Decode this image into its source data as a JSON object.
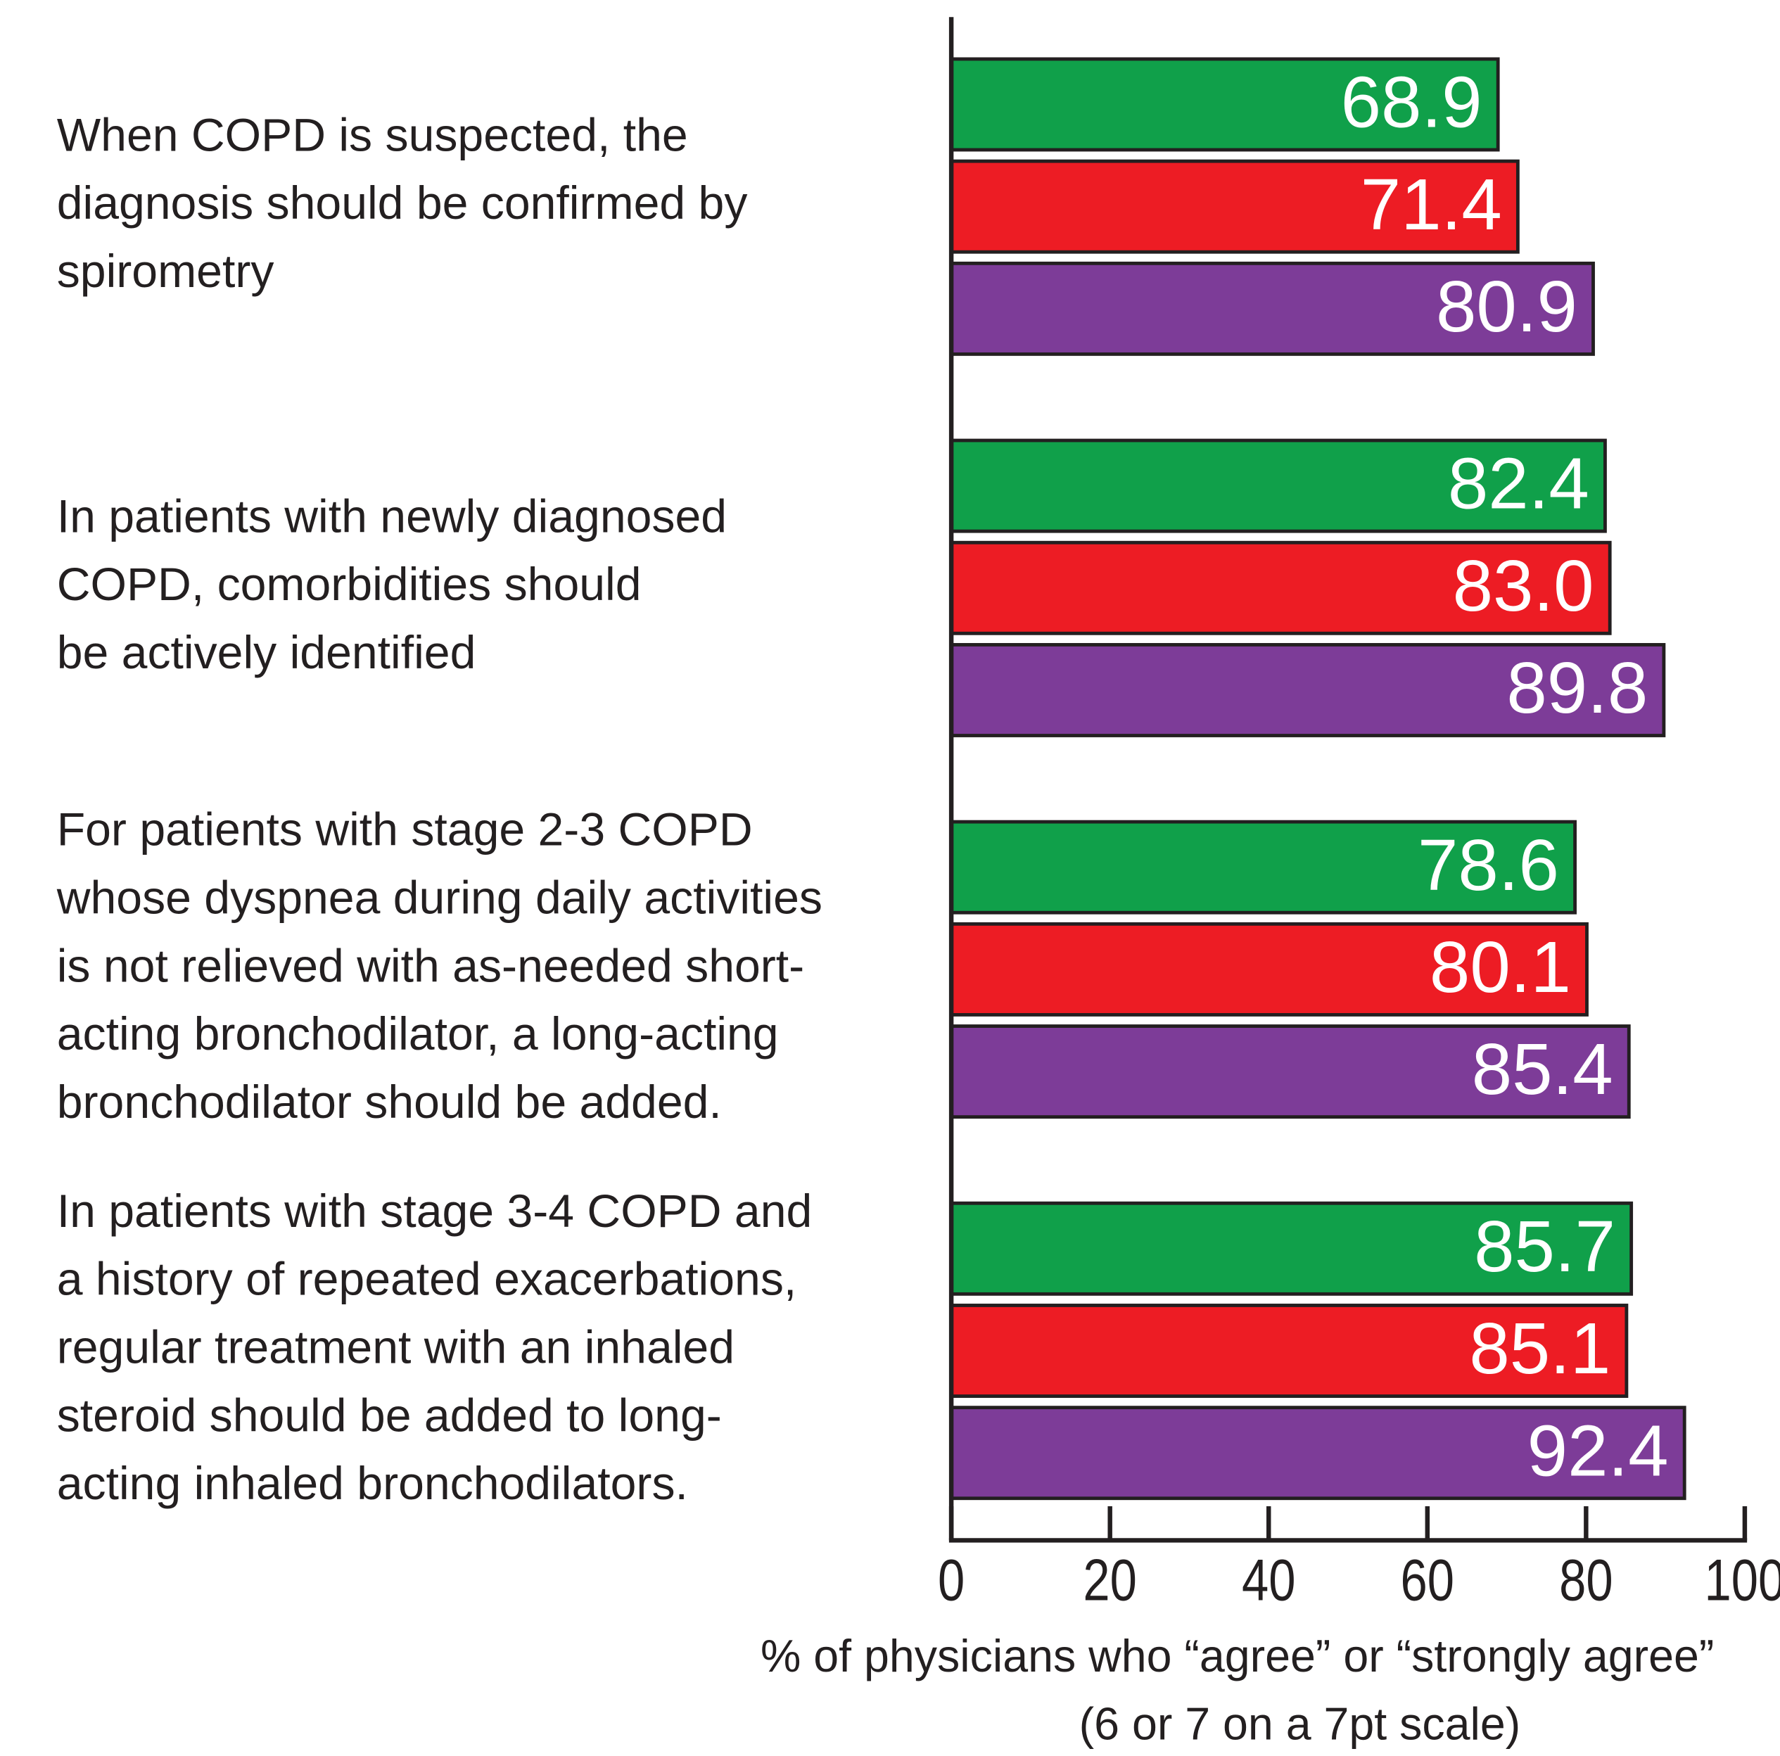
{
  "chart_data": {
    "type": "barh",
    "categories": [
      [
        "When COPD is suspected, the",
        "diagnosis should be confirmed by",
        "spirometry"
      ],
      [
        "In patients with newly diagnosed",
        "COPD, comorbidities should",
        "be actively identified"
      ],
      [
        "For patients with stage 2-3 COPD",
        "whose dyspnea during daily activities",
        "is not relieved with as-needed short-",
        "acting bronchodilator, a long-acting",
        "bronchodilator should be added."
      ],
      [
        "In patients with stage 3-4 COPD and",
        "a history of repeated exacerbations,",
        "regular treatment with an inhaled",
        "steroid should be added to long-",
        "acting inhaled bronchodilators."
      ]
    ],
    "series": [
      {
        "color": "#10a04a",
        "values": [
          68.9,
          82.4,
          78.6,
          85.7
        ],
        "value_labels": [
          "68.9",
          "82.4",
          "78.6",
          "85.7"
        ]
      },
      {
        "color": "#ed1c24",
        "values": [
          71.4,
          83.0,
          80.1,
          85.1
        ],
        "value_labels": [
          "71.4",
          "83.0",
          "80.1",
          "85.1"
        ]
      },
      {
        "color": "#7d3c98",
        "values": [
          80.9,
          89.8,
          85.4,
          92.4
        ],
        "value_labels": [
          "80.9",
          "89.8",
          "85.4",
          "92.4"
        ]
      }
    ],
    "xlabel": [
      "% of physicians who “agree” or “strongly agree”",
      "(6 or 7 on a 7pt scale)"
    ],
    "xlim": [
      0,
      100
    ],
    "xticks": [
      0,
      20,
      40,
      60,
      80,
      100
    ]
  }
}
